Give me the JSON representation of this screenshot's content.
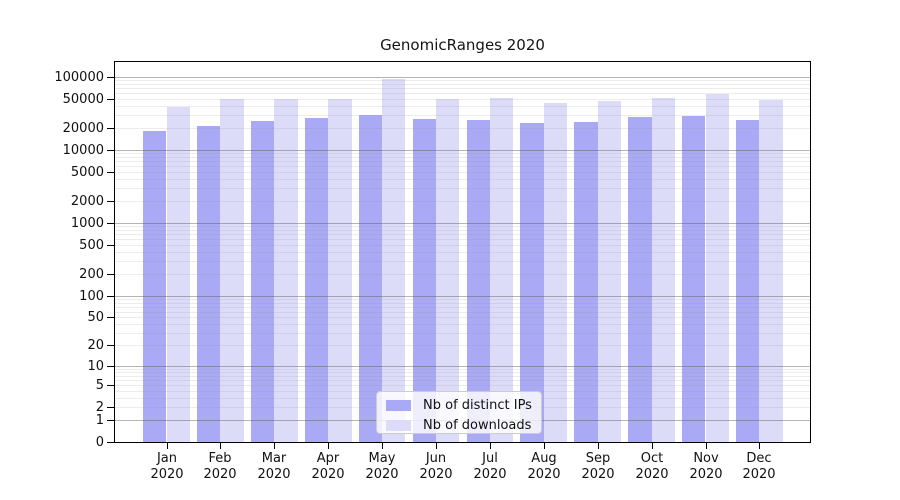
{
  "title": "GenomicRanges 2020",
  "chart_data": {
    "type": "bar",
    "title": "GenomicRanges 2020",
    "categories": [
      {
        "month": "Jan",
        "year": "2020"
      },
      {
        "month": "Feb",
        "year": "2020"
      },
      {
        "month": "Mar",
        "year": "2020"
      },
      {
        "month": "Apr",
        "year": "2020"
      },
      {
        "month": "May",
        "year": "2020"
      },
      {
        "month": "Jun",
        "year": "2020"
      },
      {
        "month": "Jul",
        "year": "2020"
      },
      {
        "month": "Aug",
        "year": "2020"
      },
      {
        "month": "Sep",
        "year": "2020"
      },
      {
        "month": "Oct",
        "year": "2020"
      },
      {
        "month": "Nov",
        "year": "2020"
      },
      {
        "month": "Dec",
        "year": "2020"
      }
    ],
    "series": [
      {
        "name": "Nb of distinct IPs",
        "color": "#a9a9f5",
        "values": [
          18200,
          20800,
          24600,
          27500,
          30000,
          26300,
          25400,
          22900,
          24200,
          27600,
          28500,
          25900
        ]
      },
      {
        "name": "Nb of downloads",
        "color": "#dcdcf9",
        "values": [
          38900,
          50100,
          49700,
          49700,
          92000,
          49200,
          51700,
          43400,
          46600,
          51700,
          57500,
          48600
        ]
      }
    ],
    "xlabel": "",
    "ylabel": "",
    "yscale": "log10(1+x)",
    "ylim": [
      0,
      158000
    ],
    "yticks": [
      0,
      1,
      2,
      5,
      10,
      20,
      50,
      100,
      200,
      500,
      1000,
      2000,
      5000,
      10000,
      20000,
      50000,
      100000
    ],
    "grid": "horizontal, major at powers of 10, minor at 2-9 multiples",
    "legend_position": "inside bottom-center",
    "colors": {
      "grid_major": "#9a9a9a",
      "grid_minor": "#e6e6e6",
      "axis": "#000000",
      "background": "#ffffff"
    }
  }
}
